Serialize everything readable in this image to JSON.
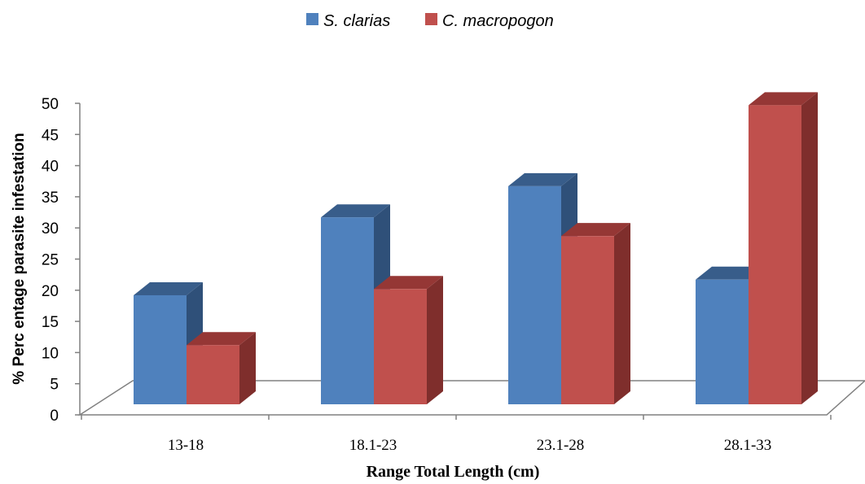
{
  "chart_data": {
    "type": "bar",
    "title": "",
    "xlabel": "Range Total Length (cm)",
    "ylabel": "% Perc entage parasite infestation",
    "categories": [
      "13-18",
      "18.1-23",
      "23.1-28",
      "28.1-33"
    ],
    "series": [
      {
        "name": "S. clarias",
        "values": [
          17.5,
          30,
          35,
          20
        ]
      },
      {
        "name": "C. macropogon",
        "values": [
          9.5,
          18.5,
          27,
          48
        ]
      }
    ],
    "ylim": [
      0,
      50
    ],
    "yticks": [
      "0",
      "5",
      "10",
      "15",
      "20",
      "25",
      "30",
      "35",
      "40",
      "45",
      "50"
    ],
    "grid": false,
    "legend_position": "top",
    "style": "3d-clustered-column"
  },
  "colors": {
    "S. clarias": {
      "front": "#4F81BD",
      "side": "#2F5079",
      "top": "#385D8A"
    },
    "C. macropogon": {
      "front": "#C0504D",
      "side": "#7F2E2C",
      "top": "#953735"
    },
    "axis": "#808080"
  }
}
